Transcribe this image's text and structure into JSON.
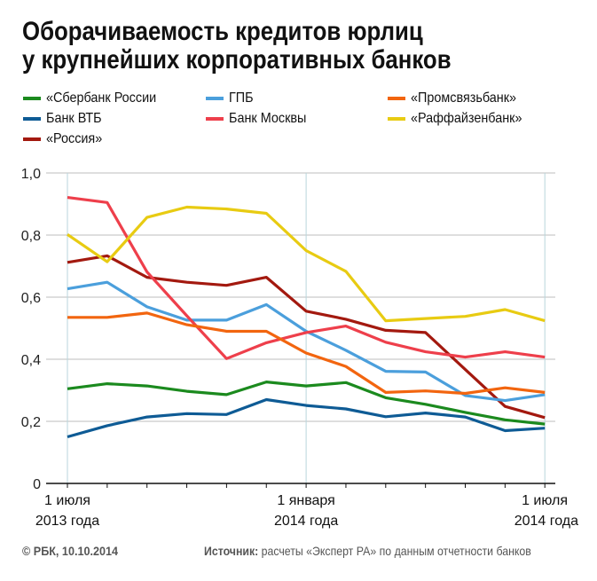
{
  "chart_data": {
    "type": "line",
    "title": "Оборачиваемость кредитов юрлиц у крупнейших корпоративных банков",
    "title_lines": [
      "Оборачиваемость кредитов юрлиц",
      "у крупнейших корпоративных банков"
    ],
    "xlabel": "",
    "ylabel": "",
    "ylim": [
      0,
      1.0
    ],
    "yticks": [
      0,
      0.2,
      0.4,
      0.6,
      0.8,
      1.0
    ],
    "ytick_labels": [
      "0",
      "0,2",
      "0,4",
      "0,6",
      "0,8",
      "1,0"
    ],
    "x": [
      "07.2013",
      "08.2013",
      "09.2013",
      "10.2013",
      "11.2013",
      "12.2013",
      "01.2014",
      "02.2014",
      "03.2014",
      "04.2014",
      "05.2014",
      "06.2014",
      "07.2014"
    ],
    "x_labels": [
      {
        "index": 0,
        "line1": "1 июля",
        "line2": "2013 года"
      },
      {
        "index": 6,
        "line1": "1 января",
        "line2": "2014 года"
      },
      {
        "index": 12,
        "line1": "1 июля",
        "line2": "2014 года"
      }
    ],
    "grid": true,
    "legend_position": "top",
    "series": [
      {
        "name": "«Сбербанк России",
        "color": "#1b8a1e",
        "values": [
          0.305,
          0.321,
          0.314,
          0.297,
          0.286,
          0.327,
          0.314,
          0.325,
          0.276,
          0.255,
          0.229,
          0.205,
          0.191
        ]
      },
      {
        "name": "Банк ВТБ",
        "color": "#0e5b95",
        "values": [
          0.15,
          0.186,
          0.214,
          0.225,
          0.222,
          0.27,
          0.251,
          0.24,
          0.215,
          0.227,
          0.214,
          0.17,
          0.178
        ]
      },
      {
        "name": "«Россия»",
        "color": "#a3190f",
        "values": [
          0.712,
          0.733,
          0.664,
          0.648,
          0.638,
          0.664,
          0.555,
          0.529,
          0.493,
          0.486,
          0.367,
          0.248,
          0.212
        ]
      },
      {
        "name": "ГПБ",
        "color": "#4b9fdc",
        "values": [
          0.627,
          0.648,
          0.569,
          0.526,
          0.526,
          0.576,
          0.49,
          0.429,
          0.361,
          0.359,
          0.283,
          0.267,
          0.286
        ]
      },
      {
        "name": "Банк Москвы",
        "color": "#ee3f4b",
        "values": [
          0.921,
          0.905,
          0.681,
          0.54,
          0.402,
          0.453,
          0.486,
          0.507,
          0.455,
          0.424,
          0.407,
          0.424,
          0.407
        ]
      },
      {
        "name": "«Промсвязьбанк»",
        "color": "#f2650f",
        "values": [
          0.535,
          0.535,
          0.549,
          0.511,
          0.49,
          0.49,
          0.42,
          0.377,
          0.293,
          0.298,
          0.29,
          0.308,
          0.293
        ]
      },
      {
        "name": "«Раффайзенбанк»",
        "color": "#e8cb12",
        "values": [
          0.802,
          0.714,
          0.857,
          0.89,
          0.884,
          0.87,
          0.75,
          0.683,
          0.524,
          0.531,
          0.538,
          0.56,
          0.524
        ]
      }
    ]
  },
  "legend": [
    {
      "label": "«Сбербанк России",
      "color": "#1b8a1e"
    },
    {
      "label": "ГПБ",
      "color": "#4b9fdc"
    },
    {
      "label": "«Промсвязьбанк»",
      "color": "#f2650f"
    },
    {
      "label": "Банк ВТБ",
      "color": "#0e5b95"
    },
    {
      "label": "Банк Москвы",
      "color": "#ee3f4b"
    },
    {
      "label": "«Раффайзенбанк»",
      "color": "#e8cb12"
    },
    {
      "label": "«Россия»",
      "color": "#a3190f"
    }
  ],
  "footer": {
    "copyright": "© РБК, 10.10.2014",
    "source_label": "Источник:",
    "source_text": " расчеты «Эксперт РА» по данным отчетности банков"
  }
}
